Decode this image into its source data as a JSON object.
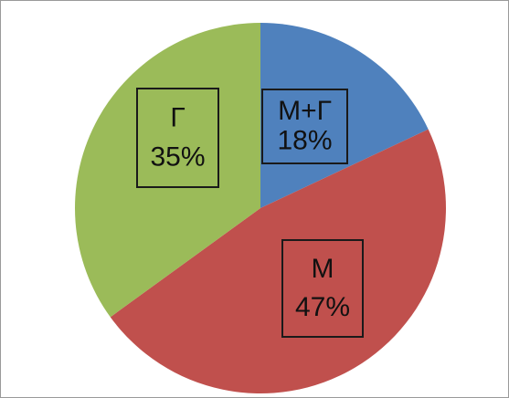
{
  "chart_data": {
    "type": "pie",
    "slices": [
      {
        "label": "М+Г",
        "value": 18,
        "value_label": "18%",
        "color": "#4f81bd"
      },
      {
        "label": "М",
        "value": 47,
        "value_label": "47%",
        "color": "#c0504d"
      },
      {
        "label": "Г",
        "value": 35,
        "value_label": "35%",
        "color": "#9bbb59"
      }
    ],
    "start_angle_deg": 0,
    "direction": "clockwise",
    "legend": "none",
    "data_labels": "boxed, inside slices"
  }
}
